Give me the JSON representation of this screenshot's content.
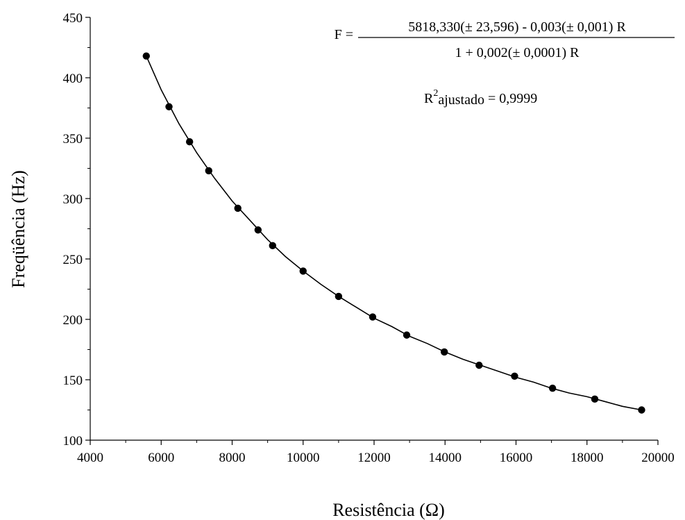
{
  "chart_data": {
    "type": "scatter",
    "xlabel": "Resistência (Ω)",
    "ylabel": "Freqüência (Hz)",
    "xlim": [
      4000,
      20000
    ],
    "ylim": [
      100,
      450
    ],
    "x_ticks": [
      "4000",
      "6000",
      "8000",
      "10000",
      "12000",
      "14000",
      "16000",
      "18000",
      "20000"
    ],
    "y_ticks": [
      "100",
      "150",
      "200",
      "250",
      "300",
      "350",
      "400",
      "450"
    ],
    "x_tick_values": [
      4000,
      6000,
      8000,
      10000,
      12000,
      14000,
      16000,
      18000,
      20000
    ],
    "y_tick_values": [
      100,
      150,
      200,
      250,
      300,
      350,
      400,
      450
    ],
    "grid": false,
    "series": [
      {
        "points": [
          {
            "x": 5580,
            "y": 418
          },
          {
            "x": 6220,
            "y": 376
          },
          {
            "x": 6800,
            "y": 347
          },
          {
            "x": 7340,
            "y": 323
          },
          {
            "x": 8160,
            "y": 292
          },
          {
            "x": 8730,
            "y": 274
          },
          {
            "x": 9140,
            "y": 261
          },
          {
            "x": 10000,
            "y": 240
          },
          {
            "x": 11000,
            "y": 219
          },
          {
            "x": 11960,
            "y": 202
          },
          {
            "x": 12920,
            "y": 187
          },
          {
            "x": 13980,
            "y": 173
          },
          {
            "x": 14960,
            "y": 162
          },
          {
            "x": 15960,
            "y": 153
          },
          {
            "x": 17030,
            "y": 143
          },
          {
            "x": 18220,
            "y": 134
          },
          {
            "x": 19540,
            "y": 125
          }
        ]
      }
    ],
    "fit_curve": {
      "from_x": 5580,
      "to_x": 19540,
      "points": [
        {
          "x": 5580,
          "y": 418
        },
        {
          "x": 6000,
          "y": 390
        },
        {
          "x": 6500,
          "y": 362
        },
        {
          "x": 7000,
          "y": 338
        },
        {
          "x": 7500,
          "y": 317
        },
        {
          "x": 8000,
          "y": 298
        },
        {
          "x": 8500,
          "y": 282
        },
        {
          "x": 9000,
          "y": 266
        },
        {
          "x": 9500,
          "y": 252
        },
        {
          "x": 10000,
          "y": 240
        },
        {
          "x": 10500,
          "y": 229
        },
        {
          "x": 11000,
          "y": 219
        },
        {
          "x": 11500,
          "y": 210
        },
        {
          "x": 12000,
          "y": 201
        },
        {
          "x": 12500,
          "y": 194
        },
        {
          "x": 13000,
          "y": 186
        },
        {
          "x": 13500,
          "y": 180
        },
        {
          "x": 14000,
          "y": 173
        },
        {
          "x": 14500,
          "y": 167
        },
        {
          "x": 15000,
          "y": 162
        },
        {
          "x": 15500,
          "y": 157
        },
        {
          "x": 16000,
          "y": 152
        },
        {
          "x": 16500,
          "y": 148
        },
        {
          "x": 17000,
          "y": 143
        },
        {
          "x": 17500,
          "y": 139
        },
        {
          "x": 18000,
          "y": 136
        },
        {
          "x": 18500,
          "y": 132
        },
        {
          "x": 19000,
          "y": 128
        },
        {
          "x": 19540,
          "y": 125
        }
      ]
    },
    "annotations": {
      "equation_lhs": "F =",
      "equation_numerator": "5818,330(± 23,596) - 0,003(± 0,001) R",
      "equation_denominator": "1 + 0,002(± 0,0001) R",
      "r2_base": "R",
      "r2_sup": "2",
      "r2_sub": "ajustado",
      "r2_value": "= 0,9999"
    }
  }
}
